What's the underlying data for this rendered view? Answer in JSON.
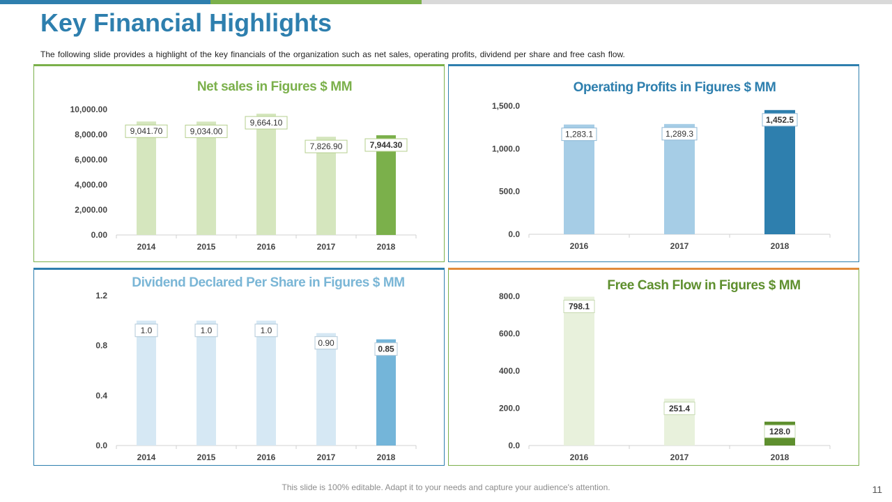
{
  "slide": {
    "title": "Key Financial Highlights",
    "subtitle": "The following slide provides  a highlight of the key financials of the organization  such as net sales,  operating  profits,  dividend  per share and free  cash flow.",
    "footer": "This slide is 100% editable. Adapt it to your needs and capture your audience's attention.",
    "page_number": "11",
    "colors": {
      "blue": "#2e7fae",
      "green": "#7bb04b",
      "orange": "#e28b3b",
      "gray": "#d9d9d9"
    }
  },
  "chart_data": [
    {
      "type": "bar",
      "title": "Net sales in Figures $ MM",
      "title_color": "#7bb04b",
      "categories": [
        "2014",
        "2015",
        "2016",
        "2017",
        "2018"
      ],
      "values": [
        9041.7,
        9034.0,
        9664.1,
        7826.9,
        7944.3
      ],
      "value_labels": [
        "9,041.70",
        "9,034.00",
        "9,664.10",
        "7,826.90",
        "7,944.30"
      ],
      "ylim": [
        0,
        10000
      ],
      "yticks": [
        "0.00",
        "2,000.00",
        "4,000.00",
        "6,000.00",
        "8,000.00",
        "10,000.00"
      ],
      "bar_colors": [
        "#d5e6be",
        "#d5e6be",
        "#d5e6be",
        "#d5e6be",
        "#7bb04b"
      ],
      "label_border": "#b5cf8e",
      "xlabel": "",
      "ylabel": ""
    },
    {
      "type": "bar",
      "title": "Operating Profits in Figures $ MM",
      "title_color": "#2e7fae",
      "categories": [
        "2016",
        "2017",
        "2018"
      ],
      "values": [
        1283.1,
        1289.3,
        1452.5
      ],
      "value_labels": [
        "1,283.1",
        "1,289.3",
        "1,452.5"
      ],
      "ylim": [
        0,
        1500
      ],
      "yticks": [
        "0.0",
        "500.0",
        "1,000.0",
        "1,500.0"
      ],
      "bar_colors": [
        "#a6cde6",
        "#a6cde6",
        "#2e7fae"
      ],
      "label_border": "#8fb8d6",
      "xlabel": "",
      "ylabel": ""
    },
    {
      "type": "bar",
      "title": "Dividend Declared Per Share in Figures $ MM",
      "title_color": "#7ab6d6",
      "categories": [
        "2014",
        "2015",
        "2016",
        "2017",
        "2018"
      ],
      "values": [
        1.0,
        1.0,
        1.0,
        0.9,
        0.85
      ],
      "value_labels": [
        "1.0",
        "1.0",
        "1.0",
        "0.90",
        "0.85"
      ],
      "ylim": [
        0,
        1.2
      ],
      "yticks": [
        "0.0",
        "0.4",
        "0.8",
        "1.2"
      ],
      "bar_colors": [
        "#d6e8f4",
        "#d6e8f4",
        "#d6e8f4",
        "#d6e8f4",
        "#74b5d9"
      ],
      "label_border": "#b0c8d8",
      "xlabel": "",
      "ylabel": ""
    },
    {
      "type": "bar",
      "title": "Free Cash Flow in Figures $ MM",
      "title_color": "#5e8f2e",
      "categories": [
        "2016",
        "2017",
        "2018"
      ],
      "values": [
        798.1,
        251.4,
        128.0
      ],
      "value_labels": [
        "798.1",
        "251.4",
        "128.0"
      ],
      "ylim": [
        0,
        800
      ],
      "yticks": [
        "0.0",
        "200.0",
        "400.0",
        "600.0",
        "800.0"
      ],
      "bar_colors": [
        "#e8f1dc",
        "#e8f1dc",
        "#5e8f2e"
      ],
      "label_border": "#c6d9b0",
      "xlabel": "",
      "ylabel": ""
    }
  ]
}
